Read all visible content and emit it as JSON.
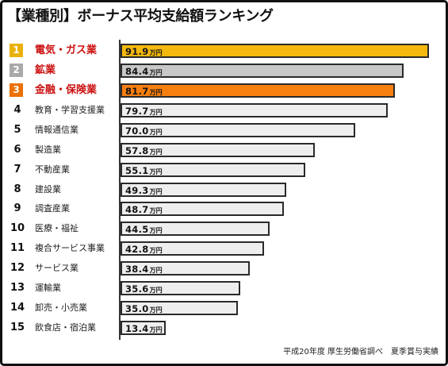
{
  "chart_data": {
    "type": "bar",
    "orientation": "horizontal",
    "title": "【業種別】ボーナス平均支給額ランキング",
    "ranks": [
      1,
      2,
      3,
      4,
      5,
      6,
      7,
      8,
      9,
      10,
      11,
      12,
      13,
      14,
      15
    ],
    "categories": [
      "電気・ガス業",
      "鉱業",
      "金融・保険業",
      "教育・学習支援業",
      "情報通信業",
      "製造業",
      "不動産業",
      "建設業",
      "調査産業",
      "医療・福祉",
      "複合サービス事業",
      "サービス業",
      "運輸業",
      "卸売・小売業",
      "飲食店・宿泊業"
    ],
    "values": [
      91.9,
      84.4,
      81.7,
      79.7,
      70.0,
      57.8,
      55.1,
      49.3,
      48.7,
      44.5,
      42.8,
      38.4,
      35.6,
      35.0,
      13.4
    ],
    "unit": "万円",
    "grid": false,
    "legend": "none"
  },
  "source_note": "平成20年度 厚生労働省調べ　夏季賞与実績",
  "colors": {
    "badge_top3": [
      "#eab10c",
      "#a9a9a9",
      "#ec7003"
    ],
    "bar_top3": [
      "#f4b90e",
      "#c8c8c8",
      "#f67f10"
    ],
    "bar_default": "#eeeeee",
    "label_top3": "#cc1111",
    "bar_border": "#2a2a2a"
  }
}
